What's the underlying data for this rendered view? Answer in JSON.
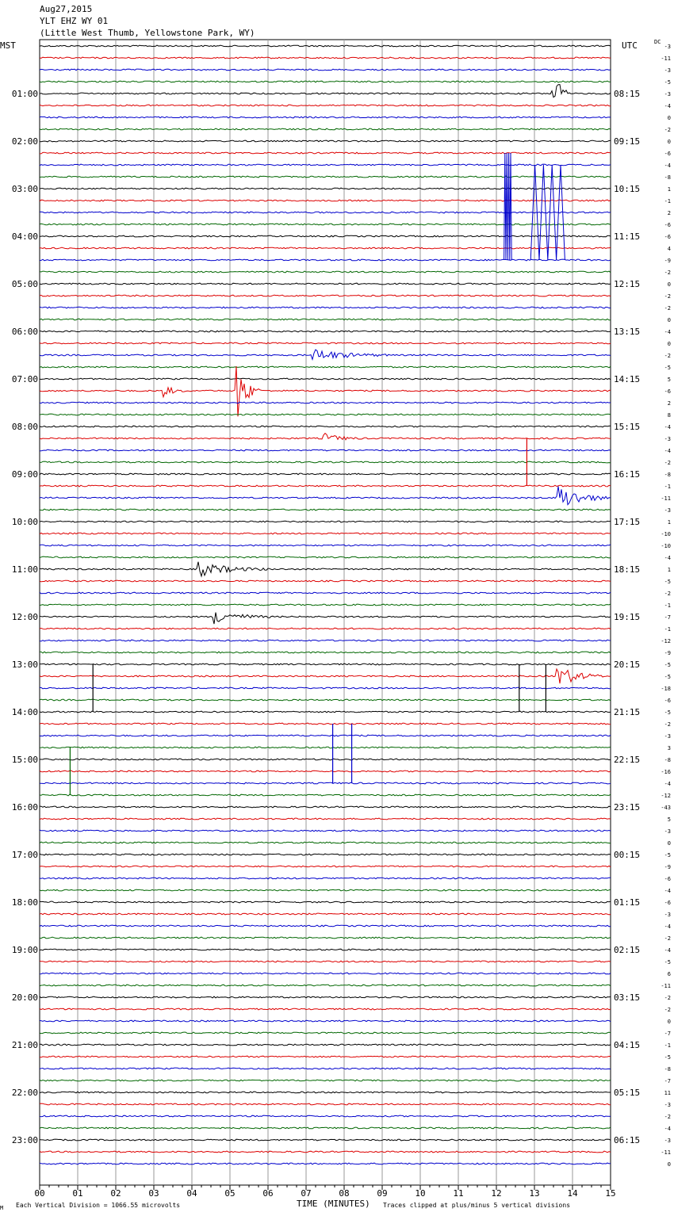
{
  "header": {
    "date": "Aug27,2015",
    "station": "YLT EHZ WY 01",
    "location": "(Little West Thumb, Yellowstone Park, WY)"
  },
  "footer": {
    "scale_note": "Each Vertical Division = 1066.55 microvolts",
    "clip_note": "Traces clipped at plus/minus 5 vertical divisions",
    "corner_mark": "M"
  },
  "chart_data": {
    "type": "line",
    "left_axis_label": "MST",
    "right_axis_label": "UTC",
    "dc_label": "DC",
    "xlabel": "TIME (MINUTES)",
    "x_ticks": [
      "00",
      "01",
      "02",
      "03",
      "04",
      "05",
      "06",
      "07",
      "08",
      "09",
      "10",
      "11",
      "12",
      "13",
      "14",
      "15"
    ],
    "xlim": [
      0,
      15
    ],
    "mst_labels": [
      "01:00",
      "02:00",
      "03:00",
      "04:00",
      "05:00",
      "06:00",
      "07:00",
      "08:00",
      "09:00",
      "10:00",
      "11:00",
      "12:00",
      "13:00",
      "14:00",
      "15:00",
      "16:00",
      "17:00",
      "18:00",
      "19:00",
      "20:00",
      "21:00",
      "22:00",
      "23:00"
    ],
    "utc_labels": [
      "08:15",
      "09:15",
      "10:15",
      "11:15",
      "12:15",
      "13:15",
      "14:15",
      "15:15",
      "16:15",
      "17:15",
      "18:15",
      "19:15",
      "20:15",
      "21:15",
      "22:15",
      "23:15",
      "00:15",
      "01:15",
      "02:15",
      "03:15",
      "04:15",
      "05:15",
      "06:15"
    ],
    "trace_colors": [
      "#000000",
      "#dd0000",
      "#0000cc",
      "#006600"
    ],
    "grid": true,
    "dc_offsets": [
      -3,
      -11,
      -3,
      -5,
      -3,
      -4,
      0,
      -2,
      0,
      -6,
      -4,
      -8,
      1,
      -1,
      2,
      -6,
      -6,
      4,
      -9,
      -2,
      0,
      -2,
      -2,
      0,
      -4,
      0,
      -2,
      -5,
      5,
      -6,
      2,
      8,
      -4,
      -3,
      -4,
      -2,
      -8,
      -1,
      -11,
      -3,
      1,
      -10,
      -10,
      -4,
      1,
      -5,
      -2,
      -1,
      -7,
      -1,
      -12,
      -9,
      -5,
      -5,
      -18,
      -6,
      -5,
      -2,
      -3,
      3,
      -8,
      -16,
      -4,
      -12,
      -43,
      5,
      -3,
      0,
      -5,
      -9,
      -6,
      -4,
      -6,
      -3,
      -4,
      -2,
      -4,
      -5,
      6,
      -11,
      -2,
      -2,
      0,
      -7,
      -1,
      -5,
      -8,
      -7,
      11,
      -3,
      -2,
      -4,
      -3,
      -11,
      0
    ],
    "events": [
      {
        "trace": 4,
        "minute": 13.5,
        "amplitude": 2.8,
        "duration": 0.4
      },
      {
        "trace": 29,
        "minute": 3.3,
        "amplitude": 0.5,
        "duration": 0.5
      },
      {
        "trace": 29,
        "minute": 5.2,
        "amplitude": 2.5,
        "duration": 0.6
      },
      {
        "trace": 26,
        "minute": 7.2,
        "amplitude": 0.5,
        "duration": 2.0
      },
      {
        "trace": 33,
        "minute": 7.5,
        "amplitude": 0.4,
        "duration": 1.0
      },
      {
        "trace": 53,
        "minute": 13.6,
        "amplitude": 1.0,
        "duration": 1.2
      },
      {
        "trace": 38,
        "minute": 13.6,
        "amplitude": 1.2,
        "duration": 1.4
      },
      {
        "trace": 44,
        "minute": 4.2,
        "amplitude": 0.6,
        "duration": 1.8
      },
      {
        "trace": 48,
        "minute": 4.6,
        "amplitude": 0.6,
        "duration": 1.5
      }
    ],
    "spikes": [
      {
        "trace": 18,
        "minute": 12.2,
        "amplitude": -9,
        "width": 0.2
      },
      {
        "trace": 18,
        "minute": 12.9,
        "amplitude": -8,
        "width": 0.9
      },
      {
        "trace": 33,
        "minute": 12.8,
        "amplitude": 4,
        "width": 0
      },
      {
        "trace": 52,
        "minute": 1.4,
        "amplitude": 4,
        "width": 0
      },
      {
        "trace": 52,
        "minute": 12.6,
        "amplitude": 4,
        "width": 0
      },
      {
        "trace": 52,
        "minute": 13.3,
        "amplitude": 4,
        "width": 0
      },
      {
        "trace": 59,
        "minute": 0.8,
        "amplitude": 4,
        "width": 0
      },
      {
        "trace": 62,
        "minute": 7.7,
        "amplitude": -5,
        "width": 0
      },
      {
        "trace": 62,
        "minute": 8.2,
        "amplitude": -5,
        "width": 0
      }
    ]
  }
}
